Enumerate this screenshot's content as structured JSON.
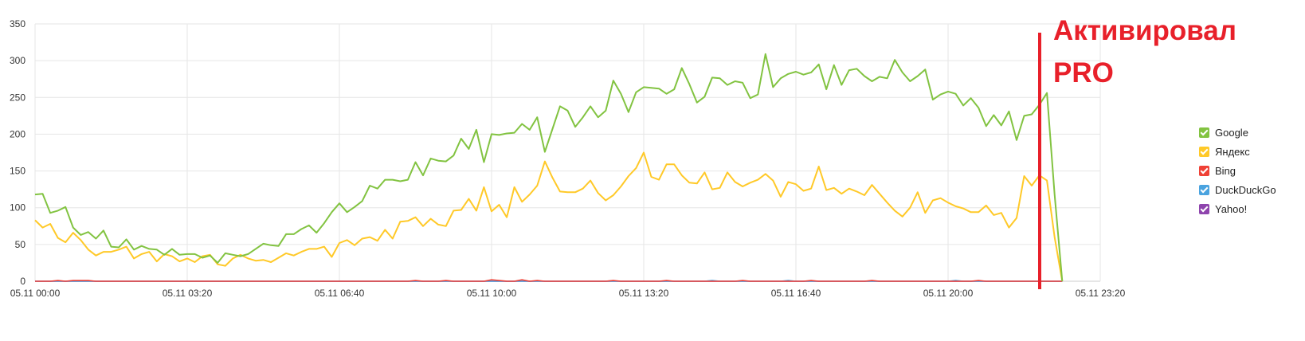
{
  "chart_data": {
    "type": "line",
    "ylim": [
      0,
      350
    ],
    "yticks": [
      0,
      50,
      100,
      150,
      200,
      250,
      300,
      350
    ],
    "xlim": [
      "05.11 00:00",
      "05.11 23:20"
    ],
    "xticks": [
      "05.11 00:00",
      "05.11 03:20",
      "05.11 06:40",
      "05.11 10:00",
      "05.11 13:20",
      "05.11 16:40",
      "05.11 20:00",
      "05.11 23:20"
    ],
    "sample_interval_minutes": 10,
    "grid": true,
    "legend_position": "right",
    "series": [
      {
        "name": "Google",
        "color": "#82c341",
        "values": [
          118,
          119,
          93,
          96,
          101,
          73,
          63,
          67,
          58,
          69,
          47,
          46,
          57,
          43,
          48,
          44,
          43,
          36,
          44,
          36,
          37,
          37,
          32,
          35,
          25,
          38,
          36,
          34,
          37,
          44,
          51,
          49,
          48,
          64,
          64,
          71,
          76,
          66,
          79,
          94,
          106,
          94,
          101,
          109,
          130,
          126,
          138,
          138,
          136,
          138,
          162,
          144,
          167,
          164,
          163,
          171,
          194,
          180,
          206,
          162,
          200,
          199,
          201,
          202,
          214,
          206,
          223,
          176,
          207,
          238,
          232,
          210,
          223,
          238,
          223,
          232,
          273,
          255,
          230,
          257,
          264,
          263,
          262,
          255,
          261,
          290,
          268,
          243,
          251,
          277,
          276,
          267,
          272,
          270,
          249,
          254,
          309,
          264,
          276,
          282,
          285,
          281,
          284,
          295,
          261,
          294,
          267,
          287,
          289,
          279,
          272,
          278,
          276,
          301,
          284,
          272,
          279,
          288,
          247,
          254,
          258,
          255,
          239,
          249,
          236,
          211,
          226,
          212,
          231,
          192,
          225,
          227,
          240,
          256,
          118,
          0
        ]
      },
      {
        "name": "Яндекс",
        "color": "#ffc928",
        "values": [
          83,
          73,
          78,
          59,
          53,
          66,
          56,
          43,
          35,
          40,
          40,
          43,
          47,
          31,
          37,
          40,
          27,
          37,
          34,
          27,
          31,
          26,
          34,
          36,
          23,
          21,
          31,
          36,
          31,
          28,
          29,
          26,
          32,
          38,
          35,
          40,
          44,
          44,
          47,
          33,
          52,
          56,
          49,
          58,
          60,
          55,
          70,
          58,
          81,
          82,
          87,
          75,
          85,
          77,
          75,
          96,
          97,
          112,
          96,
          128,
          95,
          104,
          87,
          128,
          108,
          118,
          130,
          163,
          141,
          122,
          121,
          121,
          126,
          137,
          120,
          110,
          117,
          129,
          143,
          154,
          175,
          142,
          138,
          159,
          159,
          144,
          134,
          133,
          148,
          125,
          127,
          148,
          135,
          129,
          134,
          138,
          146,
          137,
          115,
          135,
          132,
          123,
          126,
          156,
          124,
          127,
          119,
          126,
          122,
          117,
          131,
          119,
          107,
          96,
          88,
          100,
          121,
          93,
          110,
          113,
          107,
          102,
          99,
          94,
          94,
          103,
          90,
          93,
          73,
          86,
          143,
          130,
          144,
          137,
          60,
          0
        ]
      },
      {
        "name": "Bing",
        "color": "#ef4136",
        "values": [
          0,
          0,
          0,
          1,
          0,
          1,
          1,
          1,
          0,
          0,
          0,
          0,
          0,
          0,
          0,
          0,
          0,
          0,
          0,
          0,
          0,
          0,
          0,
          0,
          0,
          0,
          0,
          0,
          0,
          0,
          0,
          0,
          0,
          0,
          0,
          0,
          0,
          0,
          0,
          0,
          0,
          0,
          0,
          0,
          0,
          0,
          0,
          0,
          0,
          0,
          1,
          0,
          0,
          0,
          1,
          0,
          0,
          0,
          0,
          0,
          2,
          1,
          0,
          0,
          2,
          0,
          1,
          0,
          0,
          0,
          0,
          0,
          0,
          0,
          0,
          0,
          1,
          0,
          0,
          0,
          0,
          0,
          0,
          1,
          0,
          0,
          0,
          0,
          0,
          0,
          0,
          0,
          0,
          1,
          0,
          0,
          0,
          0,
          0,
          0,
          0,
          0,
          1,
          0,
          0,
          0,
          0,
          0,
          0,
          0,
          1,
          0,
          0,
          0,
          0,
          0,
          0,
          0,
          0,
          0,
          0,
          0,
          0,
          0,
          1,
          0,
          0,
          0,
          0,
          0,
          0,
          0,
          0,
          0,
          0,
          0
        ]
      },
      {
        "name": "DuckDuckGo",
        "color": "#4aa3df",
        "values": [
          0,
          0,
          0,
          0,
          0,
          0,
          0,
          0,
          0,
          0,
          0,
          0,
          0,
          0,
          0,
          0,
          0,
          0,
          0,
          0,
          0,
          0,
          0,
          0,
          0,
          0,
          0,
          0,
          0,
          0,
          0,
          0,
          0,
          0,
          0,
          0,
          0,
          0,
          0,
          0,
          0,
          0,
          0,
          0,
          0,
          0,
          0,
          0,
          0,
          0,
          0,
          0,
          0,
          0,
          0,
          0,
          0,
          0,
          0,
          0,
          0,
          0,
          0,
          0,
          0,
          0,
          0,
          0,
          0,
          0,
          0,
          0,
          0,
          0,
          0,
          0,
          0,
          0,
          0,
          0,
          0,
          0,
          0,
          0,
          0,
          0,
          0,
          0,
          0,
          1,
          0,
          0,
          0,
          0,
          0,
          0,
          0,
          0,
          0,
          1,
          0,
          0,
          0,
          0,
          0,
          0,
          0,
          0,
          0,
          0,
          0,
          0,
          0,
          0,
          0,
          0,
          0,
          0,
          0,
          0,
          0,
          1,
          0,
          0,
          0,
          0,
          0,
          0,
          0,
          0,
          0,
          0,
          0,
          0,
          0,
          0
        ]
      },
      {
        "name": "Yahoo!",
        "color": "#8e44ad",
        "values": [
          0,
          0,
          0,
          0,
          0,
          0,
          0,
          0,
          0,
          0,
          0,
          0,
          0,
          0,
          0,
          0,
          0,
          0,
          0,
          0,
          0,
          0,
          0,
          0,
          0,
          0,
          0,
          0,
          0,
          0,
          0,
          0,
          0,
          0,
          0,
          0,
          0,
          0,
          0,
          0,
          0,
          0,
          0,
          0,
          0,
          0,
          0,
          0,
          0,
          0,
          0,
          0,
          0,
          0,
          0,
          0,
          0,
          0,
          0,
          0,
          0,
          0,
          0,
          0,
          0,
          0,
          0,
          0,
          0,
          0,
          0,
          0,
          0,
          0,
          0,
          0,
          0,
          0,
          0,
          0,
          0,
          0,
          0,
          0,
          0,
          0,
          0,
          0,
          0,
          0,
          0,
          0,
          0,
          0,
          0,
          0,
          0,
          0,
          0,
          0,
          0,
          0,
          0,
          0,
          0,
          0,
          0,
          0,
          0,
          0,
          0,
          0,
          0,
          0,
          0,
          0,
          0,
          0,
          0,
          0,
          0,
          0,
          0,
          0,
          0,
          0,
          0,
          0,
          0,
          0,
          0,
          0,
          0,
          0,
          0,
          0
        ]
      }
    ]
  },
  "annotation": {
    "line1": "Активировал",
    "line2": "PRO",
    "color": "#e8202a"
  }
}
